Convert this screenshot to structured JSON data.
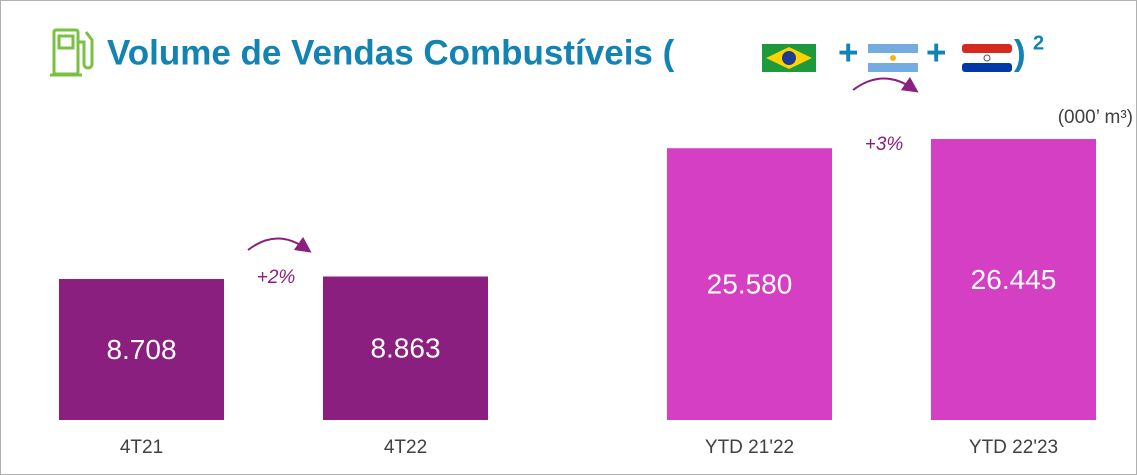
{
  "header": {
    "title": "Volume de Vendas Combustíveis (",
    "plus": "+",
    "close": ")",
    "superscript": "2",
    "unit": "(000’ m³)"
  },
  "chart_data": [
    {
      "type": "bar",
      "categories": [
        "4T21",
        "4T22"
      ],
      "values": [
        8708,
        8863
      ],
      "value_labels": [
        "8.708",
        "8.863"
      ],
      "color": "#8b1f7f",
      "ylim": [
        0,
        21000
      ],
      "annotation": "+2%"
    },
    {
      "type": "bar",
      "categories": [
        "YTD 21'22",
        "YTD 22'23"
      ],
      "values": [
        25580,
        26445
      ],
      "value_labels": [
        "25.580",
        "26.445"
      ],
      "color": "#d43fc4",
      "ylim": [
        0,
        32000
      ],
      "annotation": "+3%"
    }
  ]
}
